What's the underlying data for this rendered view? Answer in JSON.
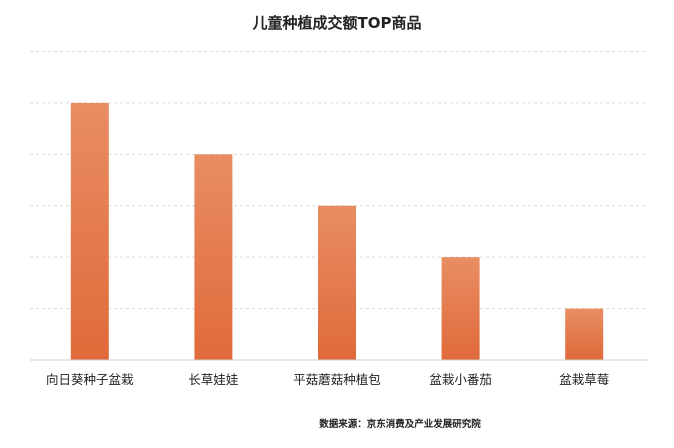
{
  "chart_data": {
    "type": "bar",
    "title": "儿童种植成交额TOP商品",
    "categories": [
      "向日葵种子盆栽",
      "长草娃娃",
      "平菇蘑菇种植包",
      "盆栽小番茄",
      "盆栽草莓"
    ],
    "values": [
      5,
      4,
      3,
      2,
      1
    ],
    "ylim": [
      0,
      6
    ],
    "grid": true,
    "y_axis_labels_shown": false,
    "legend": "none",
    "bar_color_top": "#e88d63",
    "bar_color_bottom": "#e06a3a",
    "gridline_color": "#d9d9d9",
    "axis_color": "#cccccc"
  },
  "source": "数据来源：京东消费及产业发展研究院"
}
